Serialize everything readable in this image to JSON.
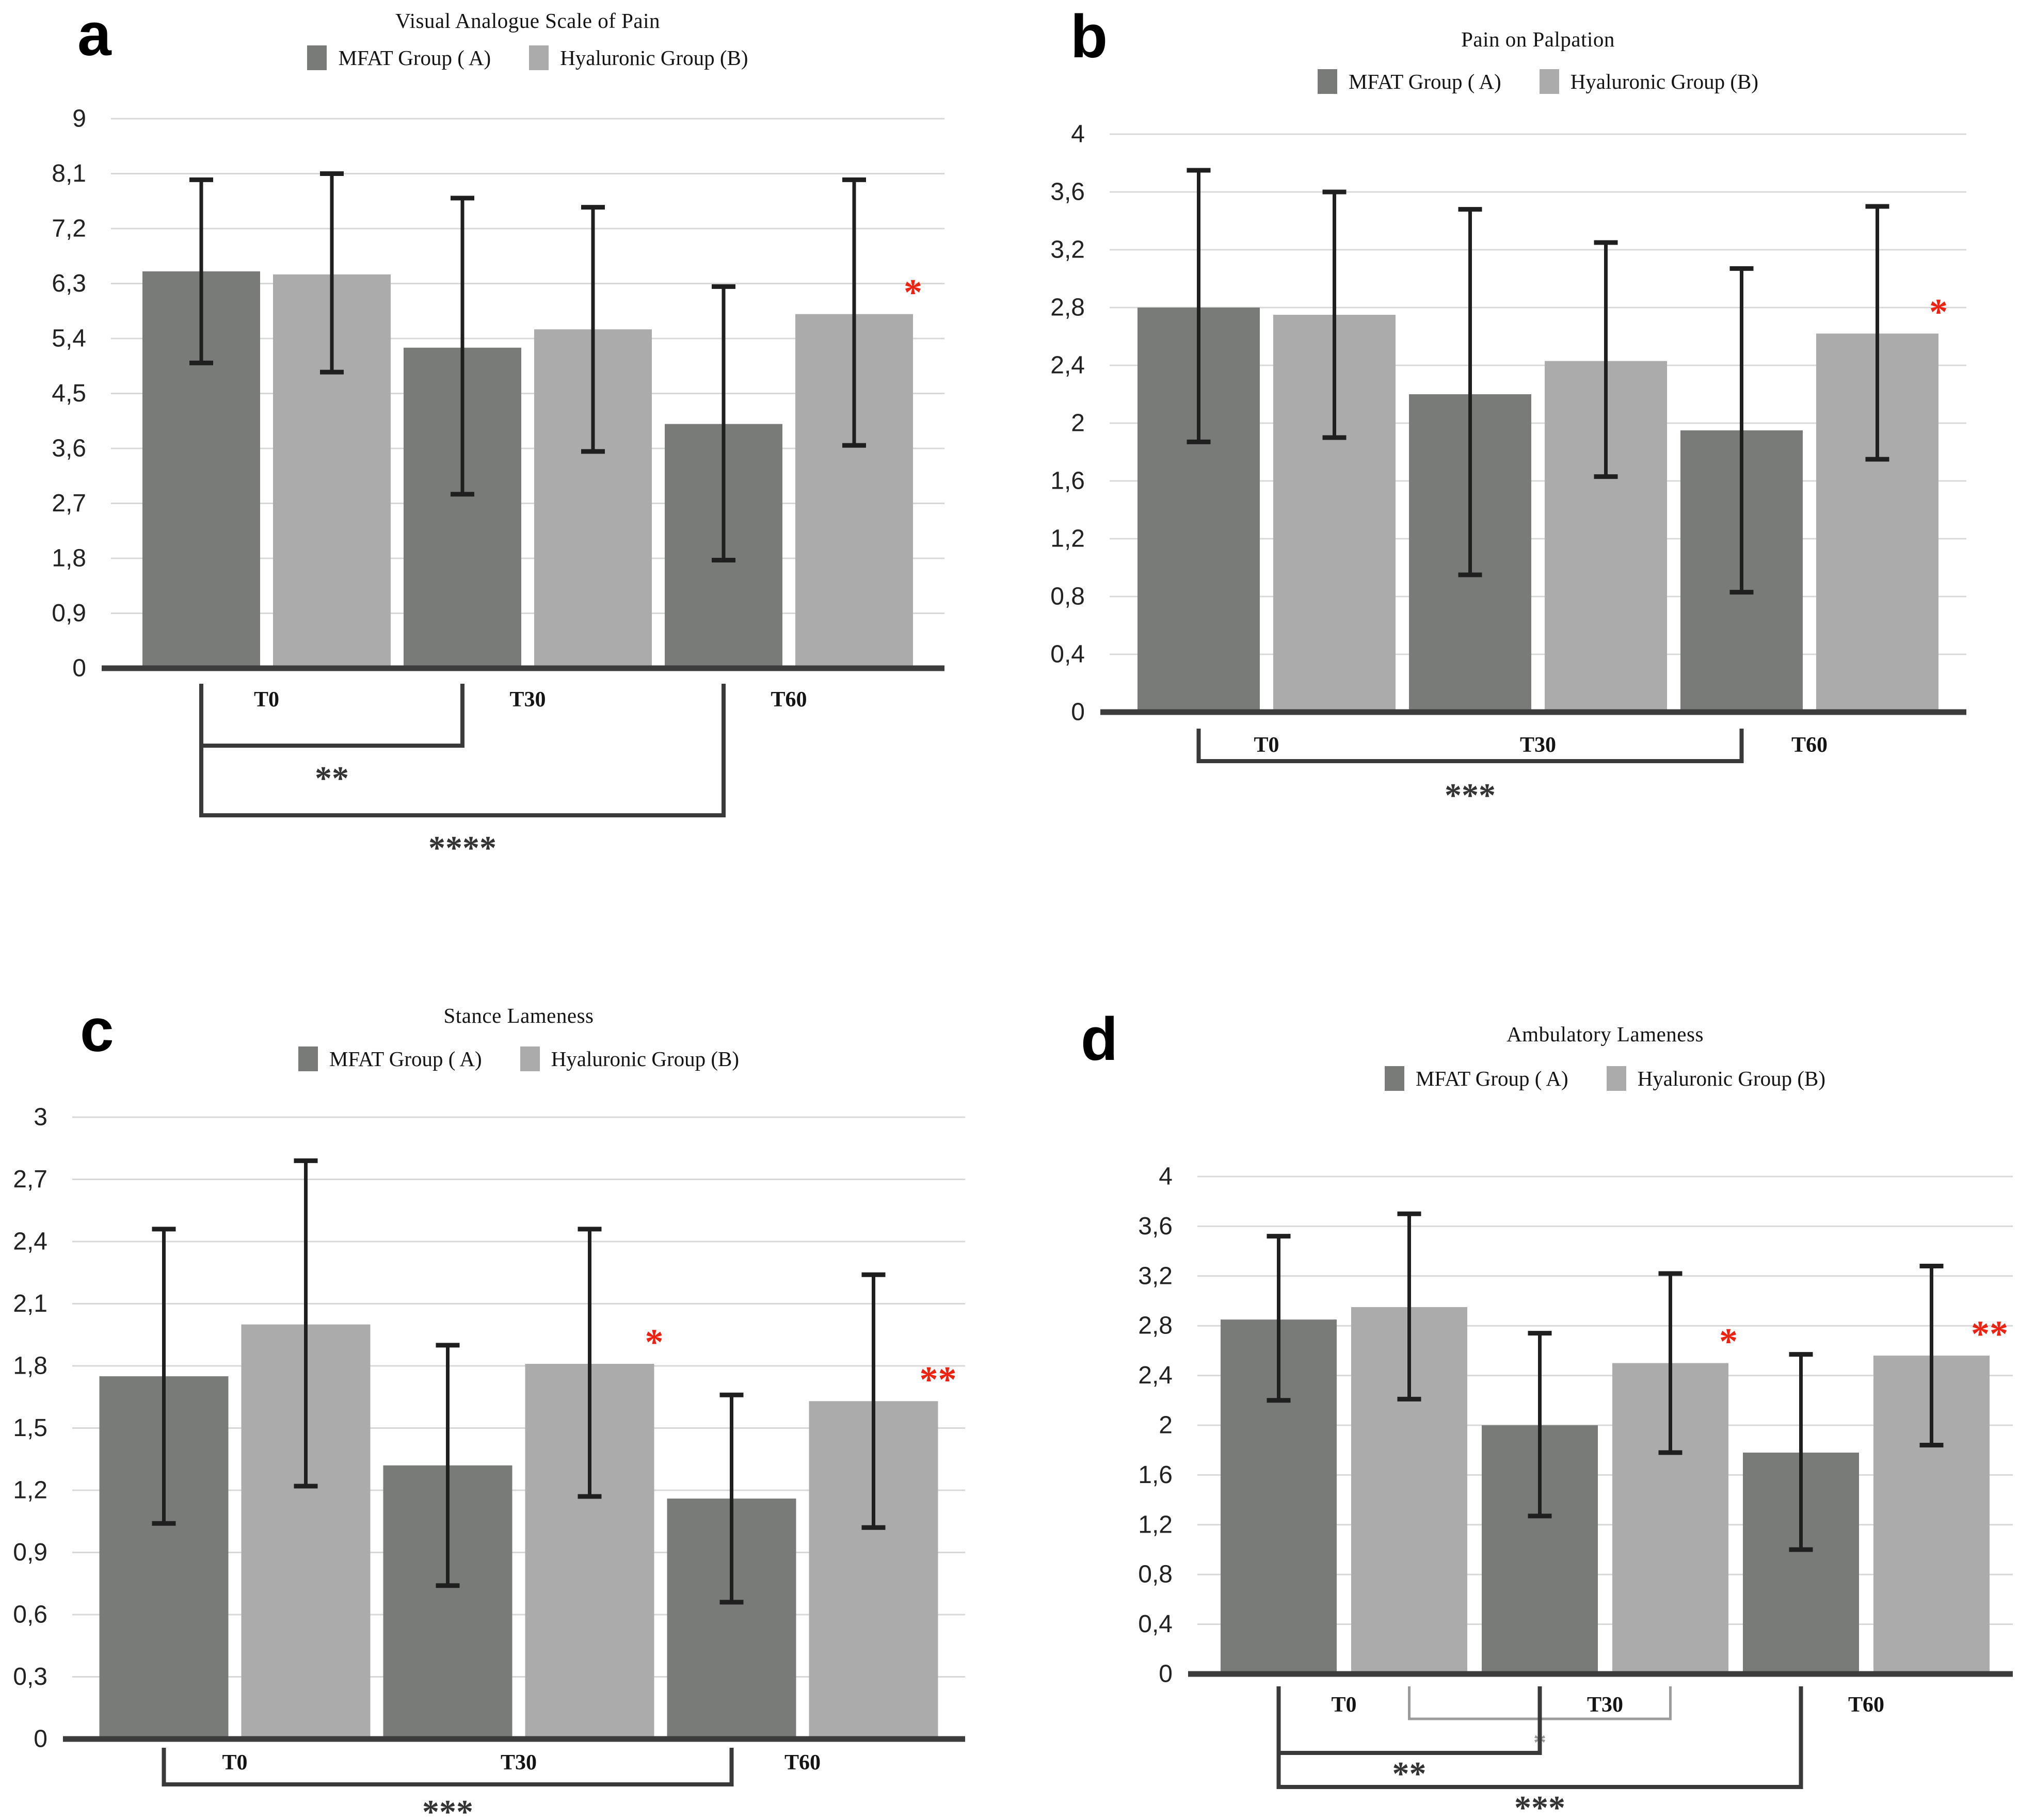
{
  "figure": {
    "background": "#ffffff",
    "description": "Four-panel bar chart figure comparing MFAT Group (A) and Hyaluronic Group (B) at timepoints T0, T30, T60 with SD error bars and significance brackets"
  },
  "colors": {
    "mfat": "#787B78",
    "hyaluronic": "#ABABAB",
    "significance": "#EE2211",
    "grid": "#D8D8D8",
    "axis": "#3C3C3C",
    "error": "#1F1F1F",
    "bracket": "#3A3A3A",
    "bracket_gray": "#9B9B9B",
    "text": "#141414"
  },
  "legend": {
    "items": [
      {
        "label": "MFAT Group ( A)",
        "color_key": "mfat"
      },
      {
        "label": "Hyaluronic Group (B)",
        "color_key": "hyaluronic"
      }
    ]
  },
  "chart_data": [
    {
      "type": "bar",
      "panel_label": "a",
      "title": "Visual Analogue Scale of Pain",
      "categories": [
        "T0",
        "T30",
        "T60"
      ],
      "ylim": [
        0,
        9
      ],
      "y_ticks": [
        {
          "value": 0,
          "label": "0"
        },
        {
          "value": 0.9,
          "label": "0,9"
        },
        {
          "value": 1.8,
          "label": "1,8"
        },
        {
          "value": 2.7,
          "label": "2,7"
        },
        {
          "value": 3.6,
          "label": "3,6"
        },
        {
          "value": 4.5,
          "label": "4,5"
        },
        {
          "value": 5.4,
          "label": "5,4"
        },
        {
          "value": 6.3,
          "label": "6,3"
        },
        {
          "value": 7.2,
          "label": "7,2"
        },
        {
          "value": 8.1,
          "label": "8,1"
        },
        {
          "value": 9,
          "label": "9"
        }
      ],
      "series": [
        {
          "name": "MFAT Group ( A)",
          "color_key": "mfat",
          "values": [
            6.5,
            5.25,
            4.0
          ],
          "error_low": [
            5.0,
            2.85,
            1.77
          ],
          "error_high": [
            8.0,
            7.7,
            6.25
          ]
        },
        {
          "name": "Hyaluronic Group (B)",
          "color_key": "hyaluronic",
          "values": [
            6.45,
            5.55,
            5.8
          ],
          "error_low": [
            4.85,
            3.55,
            3.65
          ],
          "error_high": [
            8.1,
            7.55,
            8.0
          ]
        }
      ],
      "significance_marks": [
        {
          "category_index": 2,
          "series_index": 1,
          "label": "*"
        }
      ],
      "brackets": [
        {
          "from": {
            "category_index": 0,
            "series_index": 0
          },
          "to": {
            "category_index": 1,
            "series_index": 0
          },
          "label": "**",
          "level": 1,
          "gray": false
        },
        {
          "from": {
            "category_index": 0,
            "series_index": 0
          },
          "to": {
            "category_index": 2,
            "series_index": 0
          },
          "label": "****",
          "level": 2,
          "gray": false
        }
      ]
    },
    {
      "type": "bar",
      "panel_label": "b",
      "title": "Pain on Palpation",
      "categories": [
        "T0",
        "T30",
        "T60"
      ],
      "ylim": [
        0,
        4
      ],
      "y_ticks": [
        {
          "value": 0,
          "label": "0"
        },
        {
          "value": 0.4,
          "label": "0,4"
        },
        {
          "value": 0.8,
          "label": "0,8"
        },
        {
          "value": 1.2,
          "label": "1,2"
        },
        {
          "value": 1.6,
          "label": "1,6"
        },
        {
          "value": 2,
          "label": "2"
        },
        {
          "value": 2.4,
          "label": "2,4"
        },
        {
          "value": 2.8,
          "label": "2,8"
        },
        {
          "value": 3.2,
          "label": "3,2"
        },
        {
          "value": 3.6,
          "label": "3,6"
        },
        {
          "value": 4,
          "label": "4"
        }
      ],
      "series": [
        {
          "name": "MFAT Group ( A)",
          "color_key": "mfat",
          "values": [
            2.8,
            2.2,
            1.95
          ],
          "error_low": [
            1.87,
            0.95,
            0.83
          ],
          "error_high": [
            3.75,
            3.48,
            3.07
          ]
        },
        {
          "name": "Hyaluronic Group (B)",
          "color_key": "hyaluronic",
          "values": [
            2.75,
            2.43,
            2.62
          ],
          "error_low": [
            1.9,
            1.63,
            1.75
          ],
          "error_high": [
            3.6,
            3.25,
            3.5
          ]
        }
      ],
      "significance_marks": [
        {
          "category_index": 2,
          "series_index": 1,
          "label": "*"
        }
      ],
      "brackets": [
        {
          "from": {
            "category_index": 0,
            "series_index": 0
          },
          "to": {
            "category_index": 2,
            "series_index": 0
          },
          "label": "***",
          "level": 1,
          "gray": false
        }
      ]
    },
    {
      "type": "bar",
      "panel_label": "c",
      "title": "Stance Lameness",
      "categories": [
        "T0",
        "T30",
        "T60"
      ],
      "ylim": [
        0,
        3
      ],
      "y_ticks": [
        {
          "value": 0,
          "label": "0"
        },
        {
          "value": 0.3,
          "label": "0,3"
        },
        {
          "value": 0.6,
          "label": "0,6"
        },
        {
          "value": 0.9,
          "label": "0,9"
        },
        {
          "value": 1.2,
          "label": "1,2"
        },
        {
          "value": 1.5,
          "label": "1,5"
        },
        {
          "value": 1.8,
          "label": "1,8"
        },
        {
          "value": 2.1,
          "label": "2,1"
        },
        {
          "value": 2.4,
          "label": "2,4"
        },
        {
          "value": 2.7,
          "label": "2,7"
        },
        {
          "value": 3,
          "label": "3"
        }
      ],
      "series": [
        {
          "name": "MFAT Group ( A)",
          "color_key": "mfat",
          "values": [
            1.75,
            1.32,
            1.16
          ],
          "error_low": [
            1.04,
            0.74,
            0.66
          ],
          "error_high": [
            2.46,
            1.9,
            1.66
          ]
        },
        {
          "name": "Hyaluronic Group (B)",
          "color_key": "hyaluronic",
          "values": [
            2.0,
            1.81,
            1.63
          ],
          "error_low": [
            1.22,
            1.17,
            1.02
          ],
          "error_high": [
            2.79,
            2.46,
            2.24
          ]
        }
      ],
      "significance_marks": [
        {
          "category_index": 1,
          "series_index": 1,
          "label": "*"
        },
        {
          "category_index": 2,
          "series_index": 1,
          "label": "**"
        }
      ],
      "brackets": [
        {
          "from": {
            "category_index": 0,
            "series_index": 0
          },
          "to": {
            "category_index": 2,
            "series_index": 0
          },
          "label": "***",
          "level": 1,
          "gray": false
        }
      ]
    },
    {
      "type": "bar",
      "panel_label": "d",
      "title": "Ambulatory Lameness",
      "categories": [
        "T0",
        "T30",
        "T60"
      ],
      "ylim": [
        0,
        4
      ],
      "y_ticks": [
        {
          "value": 0,
          "label": "0"
        },
        {
          "value": 0.4,
          "label": "0,4"
        },
        {
          "value": 0.8,
          "label": "0,8"
        },
        {
          "value": 1.2,
          "label": "1,2"
        },
        {
          "value": 1.6,
          "label": "1,6"
        },
        {
          "value": 2,
          "label": "2"
        },
        {
          "value": 2.4,
          "label": "2,4"
        },
        {
          "value": 2.8,
          "label": "2,8"
        },
        {
          "value": 3.2,
          "label": "3,2"
        },
        {
          "value": 3.6,
          "label": "3,6"
        },
        {
          "value": 4,
          "label": "4"
        }
      ],
      "series": [
        {
          "name": "MFAT Group ( A)",
          "color_key": "mfat",
          "values": [
            2.85,
            2.0,
            1.78
          ],
          "error_low": [
            2.2,
            1.27,
            1.0
          ],
          "error_high": [
            3.52,
            2.74,
            2.57
          ]
        },
        {
          "name": "Hyaluronic Group (B)",
          "color_key": "hyaluronic",
          "values": [
            2.95,
            2.5,
            2.56
          ],
          "error_low": [
            2.21,
            1.78,
            1.84
          ],
          "error_high": [
            3.7,
            3.22,
            3.28
          ]
        }
      ],
      "significance_marks": [
        {
          "category_index": 1,
          "series_index": 1,
          "label": "*"
        },
        {
          "category_index": 2,
          "series_index": 1,
          "label": "**"
        }
      ],
      "brackets": [
        {
          "from": {
            "category_index": 0,
            "series_index": 1
          },
          "to": {
            "category_index": 1,
            "series_index": 1
          },
          "label": "*",
          "level": 1,
          "gray": true
        },
        {
          "from": {
            "category_index": 0,
            "series_index": 0
          },
          "to": {
            "category_index": 1,
            "series_index": 0
          },
          "label": "**",
          "level": 2,
          "gray": false
        },
        {
          "from": {
            "category_index": 0,
            "series_index": 0
          },
          "to": {
            "category_index": 2,
            "series_index": 0
          },
          "label": "***",
          "level": 3,
          "gray": false
        }
      ]
    }
  ]
}
